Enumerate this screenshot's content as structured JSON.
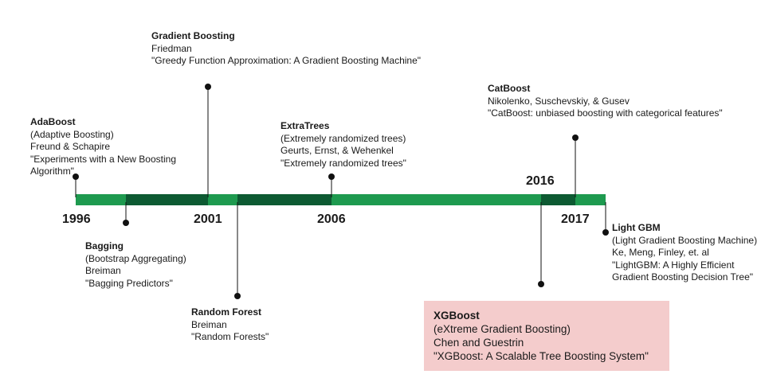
{
  "colors": {
    "bar_light": "#1e9a4f",
    "bar_dark": "#0d5a32",
    "highlight": "#f4cccc",
    "marker": "#111111"
  },
  "years": {
    "y1996": "1996",
    "y2001": "2001",
    "y2006": "2006",
    "y2016": "2016",
    "y2017": "2017"
  },
  "events": {
    "adaboost": {
      "name": "AdaBoost",
      "lines": [
        "(Adaptive Boosting)",
        "Freund & Schapire",
        "\"Experiments with a New Boosting",
        "Algorithm\""
      ]
    },
    "bagging": {
      "name": "Bagging",
      "lines": [
        "(Bootstrap Aggregating)",
        "Breiman",
        "\"Bagging Predictors\""
      ]
    },
    "gradient_boosting": {
      "name": "Gradient Boosting",
      "lines": [
        "Friedman",
        "\"Greedy Function Approximation: A Gradient Boosting Machine\""
      ]
    },
    "random_forest": {
      "name": "Random Forest",
      "lines": [
        "Breiman",
        "\"Random Forests\""
      ]
    },
    "extratrees": {
      "name": "ExtraTrees",
      "lines": [
        "(Extremely randomized trees)",
        "Geurts, Ernst, & Wehenkel",
        "\"Extremely randomized trees\""
      ]
    },
    "catboost": {
      "name": "CatBoost",
      "lines": [
        "Nikolenko, Suschevskiy, & Gusev",
        "\"CatBoost: unbiased boosting with categorical features\""
      ]
    },
    "lightgbm": {
      "name": "Light GBM",
      "lines": [
        "(Light Gradient Boosting Machine)",
        "Ke, Meng, Finley, et. al",
        "\"LightGBM: A Highly Efficient",
        "Gradient Boosting Decision Tree\""
      ]
    },
    "xgboost": {
      "name": "XGBoost",
      "lines": [
        "(eXtreme Gradient Boosting)",
        "Chen and Guestrin",
        "\"XGBoost: A Scalable Tree Boosting System\""
      ]
    }
  }
}
